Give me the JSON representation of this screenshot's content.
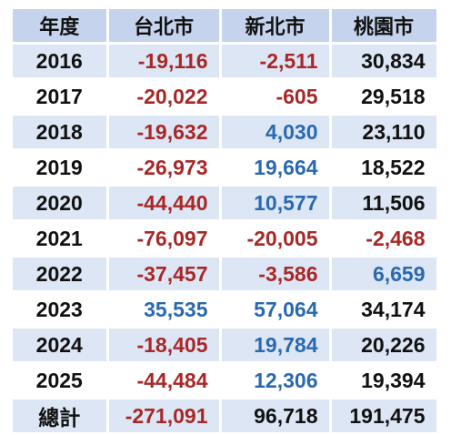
{
  "headers": [
    "年度",
    "台北市",
    "新北市",
    "桃園市"
  ],
  "rows": [
    {
      "year": "2016",
      "cells": [
        {
          "v": "-19,116",
          "c": "neg"
        },
        {
          "v": "-2,511",
          "c": "neg"
        },
        {
          "v": "30,834",
          "c": "plain"
        }
      ]
    },
    {
      "year": "2017",
      "cells": [
        {
          "v": "-20,022",
          "c": "neg"
        },
        {
          "v": "-605",
          "c": "neg"
        },
        {
          "v": "29,518",
          "c": "plain"
        }
      ]
    },
    {
      "year": "2018",
      "cells": [
        {
          "v": "-19,632",
          "c": "neg"
        },
        {
          "v": "4,030",
          "c": "pos"
        },
        {
          "v": "23,110",
          "c": "plain"
        }
      ]
    },
    {
      "year": "2019",
      "cells": [
        {
          "v": "-26,973",
          "c": "neg"
        },
        {
          "v": "19,664",
          "c": "pos"
        },
        {
          "v": "18,522",
          "c": "plain"
        }
      ]
    },
    {
      "year": "2020",
      "cells": [
        {
          "v": "-44,440",
          "c": "neg"
        },
        {
          "v": "10,577",
          "c": "pos"
        },
        {
          "v": "11,506",
          "c": "plain"
        }
      ]
    },
    {
      "year": "2021",
      "cells": [
        {
          "v": "-76,097",
          "c": "neg"
        },
        {
          "v": "-20,005",
          "c": "neg"
        },
        {
          "v": "-2,468",
          "c": "neg"
        }
      ]
    },
    {
      "year": "2022",
      "cells": [
        {
          "v": "-37,457",
          "c": "neg"
        },
        {
          "v": "-3,586",
          "c": "neg"
        },
        {
          "v": "6,659",
          "c": "pos"
        }
      ]
    },
    {
      "year": "2023",
      "cells": [
        {
          "v": "35,535",
          "c": "pos"
        },
        {
          "v": "57,064",
          "c": "pos"
        },
        {
          "v": "34,174",
          "c": "plain"
        }
      ]
    },
    {
      "year": "2024",
      "cells": [
        {
          "v": "-18,405",
          "c": "neg"
        },
        {
          "v": "19,784",
          "c": "pos"
        },
        {
          "v": "20,226",
          "c": "plain"
        }
      ]
    },
    {
      "year": "2025",
      "cells": [
        {
          "v": "-44,484",
          "c": "neg"
        },
        {
          "v": "12,306",
          "c": "pos"
        },
        {
          "v": "19,394",
          "c": "plain"
        }
      ]
    },
    {
      "year": "總計",
      "cells": [
        {
          "v": "-271,091",
          "c": "neg"
        },
        {
          "v": "96,718",
          "c": "plain"
        },
        {
          "v": "191,475",
          "c": "plain"
        }
      ]
    }
  ],
  "colors": {
    "negative": "#a82828",
    "positive": "#2a69b0",
    "header_bg": "#c5d4ec",
    "stripe_bg": "#dde6f4"
  }
}
